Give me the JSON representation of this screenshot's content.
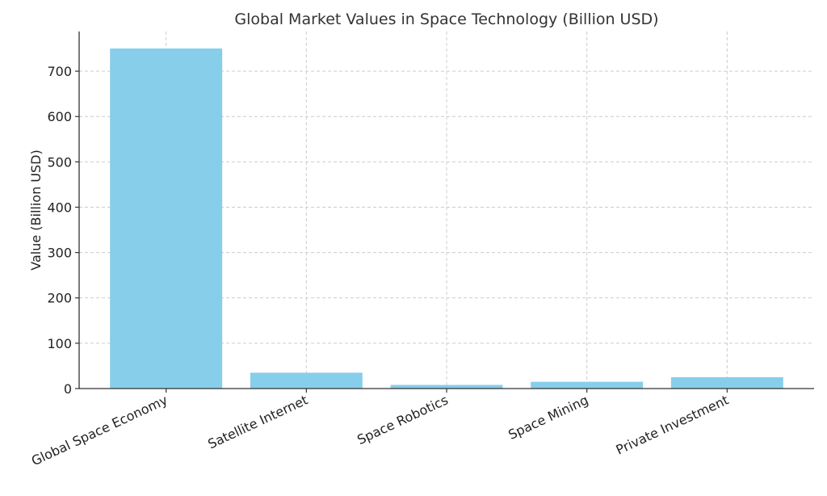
{
  "chart_data": {
    "type": "bar",
    "title": "Global Market Values in Space Technology (Billion USD)",
    "xlabel": "",
    "ylabel": "Value (Billion USD)",
    "categories": [
      "Global Space Economy",
      "Satellite Internet",
      "Space Robotics",
      "Space Mining",
      "Private Investment"
    ],
    "values": [
      750,
      35,
      8,
      15,
      25
    ],
    "ylim": [
      0,
      787.5
    ],
    "yticks": [
      0,
      100,
      200,
      300,
      400,
      500,
      600,
      700
    ],
    "grid": true,
    "legend": "none",
    "bar_color": "#87CEEB"
  }
}
